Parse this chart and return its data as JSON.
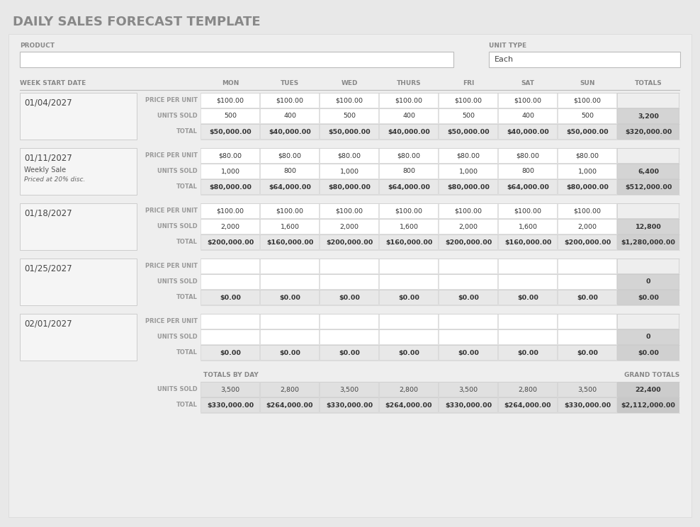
{
  "title": "DAILY SALES FORECAST TEMPLATE",
  "bg_outer": "#e8e8e8",
  "bg_panel": "#efefef",
  "white": "#ffffff",
  "cell_white": "#ffffff",
  "cell_gray_light": "#e8e8e8",
  "cell_gray_total": "#e0e0e0",
  "cell_gray_totals_col": "#d0d0d0",
  "cell_gray_grand": "#c8c8c8",
  "border_color": "#cccccc",
  "text_title": "#888888",
  "text_header": "#888888",
  "text_label": "#999999",
  "text_dark": "#444444",
  "text_bold": "#333333",
  "days": [
    "MON",
    "TUES",
    "WED",
    "THURS",
    "FRI",
    "SAT",
    "SUN",
    "TOTALS"
  ],
  "weeks": [
    {
      "date": "01/04/2027",
      "note1": "",
      "note2": "",
      "price_per_unit": [
        "$100.00",
        "$100.00",
        "$100.00",
        "$100.00",
        "$100.00",
        "$100.00",
        "$100.00",
        ""
      ],
      "units_sold": [
        "500",
        "400",
        "500",
        "400",
        "500",
        "400",
        "500",
        "3,200"
      ],
      "total": [
        "$50,000.00",
        "$40,000.00",
        "$50,000.00",
        "$40,000.00",
        "$50,000.00",
        "$40,000.00",
        "$50,000.00",
        "$320,000.00"
      ]
    },
    {
      "date": "01/11/2027",
      "note1": "Weekly Sale",
      "note2": "Priced at 20% disc.",
      "price_per_unit": [
        "$80.00",
        "$80.00",
        "$80.00",
        "$80.00",
        "$80.00",
        "$80.00",
        "$80.00",
        ""
      ],
      "units_sold": [
        "1,000",
        "800",
        "1,000",
        "800",
        "1,000",
        "800",
        "1,000",
        "6,400"
      ],
      "total": [
        "$80,000.00",
        "$64,000.00",
        "$80,000.00",
        "$64,000.00",
        "$80,000.00",
        "$64,000.00",
        "$80,000.00",
        "$512,000.00"
      ]
    },
    {
      "date": "01/18/2027",
      "note1": "",
      "note2": "",
      "price_per_unit": [
        "$100.00",
        "$100.00",
        "$100.00",
        "$100.00",
        "$100.00",
        "$100.00",
        "$100.00",
        ""
      ],
      "units_sold": [
        "2,000",
        "1,600",
        "2,000",
        "1,600",
        "2,000",
        "1,600",
        "2,000",
        "12,800"
      ],
      "total": [
        "$200,000.00",
        "$160,000.00",
        "$200,000.00",
        "$160,000.00",
        "$200,000.00",
        "$160,000.00",
        "$200,000.00",
        "$1,280,000.00"
      ]
    },
    {
      "date": "01/25/2027",
      "note1": "",
      "note2": "",
      "price_per_unit": [
        "",
        "",
        "",
        "",
        "",
        "",
        "",
        ""
      ],
      "units_sold": [
        "",
        "",
        "",
        "",
        "",
        "",
        "",
        "0"
      ],
      "total": [
        "$0.00",
        "$0.00",
        "$0.00",
        "$0.00",
        "$0.00",
        "$0.00",
        "$0.00",
        "$0.00"
      ]
    },
    {
      "date": "02/01/2027",
      "note1": "",
      "note2": "",
      "price_per_unit": [
        "",
        "",
        "",
        "",
        "",
        "",
        "",
        ""
      ],
      "units_sold": [
        "",
        "",
        "",
        "",
        "",
        "",
        "",
        "0"
      ],
      "total": [
        "$0.00",
        "$0.00",
        "$0.00",
        "$0.00",
        "$0.00",
        "$0.00",
        "$0.00",
        "$0.00"
      ]
    }
  ],
  "totals_by_day_units": [
    "3,500",
    "2,800",
    "3,500",
    "2,800",
    "3,500",
    "2,800",
    "3,500",
    "22,400"
  ],
  "totals_by_day_total": [
    "$330,000.00",
    "$264,000.00",
    "$330,000.00",
    "$264,000.00",
    "$330,000.00",
    "$264,000.00",
    "$330,000.00",
    "$2,112,000.00"
  ]
}
